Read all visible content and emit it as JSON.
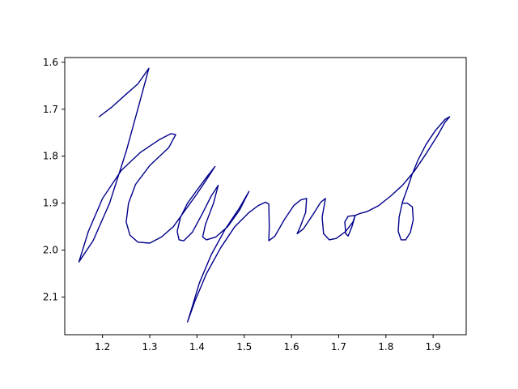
{
  "chart_data": {
    "type": "line",
    "title": "",
    "xlabel": "",
    "ylabel": "",
    "xlim": [
      1.12,
      1.97
    ],
    "ylim": [
      2.18,
      1.59
    ],
    "y_inverted": true,
    "grid": false,
    "legend": "none",
    "x_ticks": [
      1.2,
      1.3,
      1.4,
      1.5,
      1.6,
      1.7,
      1.8,
      1.9
    ],
    "x_tick_labels": [
      "1.2",
      "1.3",
      "1.4",
      "1.5",
      "1.6",
      "1.7",
      "1.8",
      "1.9"
    ],
    "y_ticks": [
      1.6,
      1.7,
      1.8,
      1.9,
      2.0,
      2.1
    ],
    "y_tick_labels": [
      "1.6",
      "1.7",
      "1.8",
      "1.9",
      "2.0",
      "2.1"
    ],
    "series": [
      {
        "color": "#00008b",
        "points": [
          [
            1.193,
            1.716
          ],
          [
            1.22,
            1.695
          ],
          [
            1.25,
            1.668
          ],
          [
            1.275,
            1.646
          ],
          [
            1.298,
            1.613
          ],
          [
            1.28,
            1.68
          ],
          [
            1.25,
            1.79
          ],
          [
            1.215,
            1.9
          ],
          [
            1.18,
            1.98
          ],
          [
            1.15,
            2.025
          ],
          [
            1.17,
            1.96
          ],
          [
            1.2,
            1.89
          ],
          [
            1.24,
            1.83
          ],
          [
            1.28,
            1.792
          ],
          [
            1.32,
            1.765
          ],
          [
            1.345,
            1.752
          ],
          [
            1.355,
            1.754
          ],
          [
            1.34,
            1.782
          ],
          [
            1.3,
            1.82
          ],
          [
            1.27,
            1.86
          ],
          [
            1.255,
            1.9
          ],
          [
            1.25,
            1.94
          ],
          [
            1.258,
            1.968
          ],
          [
            1.275,
            1.983
          ],
          [
            1.3,
            1.985
          ],
          [
            1.325,
            1.972
          ],
          [
            1.35,
            1.95
          ],
          [
            1.375,
            1.915
          ],
          [
            1.4,
            1.88
          ],
          [
            1.42,
            1.85
          ],
          [
            1.438,
            1.822
          ],
          [
            1.42,
            1.845
          ],
          [
            1.4,
            1.872
          ],
          [
            1.38,
            1.9
          ],
          [
            1.365,
            1.93
          ],
          [
            1.358,
            1.96
          ],
          [
            1.362,
            1.978
          ],
          [
            1.372,
            1.98
          ],
          [
            1.39,
            1.962
          ],
          [
            1.41,
            1.925
          ],
          [
            1.43,
            1.885
          ],
          [
            1.445,
            1.862
          ],
          [
            1.435,
            1.9
          ],
          [
            1.418,
            1.945
          ],
          [
            1.412,
            1.972
          ],
          [
            1.42,
            1.978
          ],
          [
            1.44,
            1.972
          ],
          [
            1.465,
            1.95
          ],
          [
            1.49,
            1.915
          ],
          [
            1.51,
            1.875
          ],
          [
            1.49,
            1.91
          ],
          [
            1.46,
            1.955
          ],
          [
            1.43,
            2.01
          ],
          [
            1.405,
            2.07
          ],
          [
            1.39,
            2.12
          ],
          [
            1.38,
            2.153
          ],
          [
            1.395,
            2.11
          ],
          [
            1.42,
            2.05
          ],
          [
            1.45,
            1.995
          ],
          [
            1.48,
            1.95
          ],
          [
            1.51,
            1.92
          ],
          [
            1.53,
            1.905
          ],
          [
            1.545,
            1.898
          ],
          [
            1.552,
            1.902
          ],
          [
            1.553,
            1.95
          ],
          [
            1.552,
            1.98
          ],
          [
            1.565,
            1.97
          ],
          [
            1.585,
            1.935
          ],
          [
            1.605,
            1.905
          ],
          [
            1.62,
            1.893
          ],
          [
            1.632,
            1.89
          ],
          [
            1.63,
            1.92
          ],
          [
            1.618,
            1.952
          ],
          [
            1.612,
            1.965
          ],
          [
            1.625,
            1.955
          ],
          [
            1.645,
            1.925
          ],
          [
            1.662,
            1.898
          ],
          [
            1.672,
            1.89
          ],
          [
            1.665,
            1.93
          ],
          [
            1.668,
            1.965
          ],
          [
            1.68,
            1.978
          ],
          [
            1.695,
            1.975
          ],
          [
            1.715,
            1.96
          ],
          [
            1.73,
            1.94
          ],
          [
            1.735,
            1.926
          ],
          [
            1.72,
            1.928
          ],
          [
            1.713,
            1.94
          ],
          [
            1.715,
            1.965
          ],
          [
            1.72,
            1.97
          ],
          [
            1.728,
            1.95
          ],
          [
            1.735,
            1.926
          ],
          [
            1.745,
            1.922
          ],
          [
            1.76,
            1.918
          ],
          [
            1.785,
            1.905
          ],
          [
            1.81,
            1.885
          ],
          [
            1.835,
            1.862
          ],
          [
            1.86,
            1.832
          ],
          [
            1.885,
            1.795
          ],
          [
            1.91,
            1.755
          ],
          [
            1.925,
            1.728
          ],
          [
            1.935,
            1.716
          ],
          [
            1.925,
            1.722
          ],
          [
            1.905,
            1.745
          ],
          [
            1.885,
            1.775
          ],
          [
            1.868,
            1.808
          ],
          [
            1.855,
            1.84
          ],
          [
            1.845,
            1.87
          ],
          [
            1.835,
            1.898
          ],
          [
            1.828,
            1.93
          ],
          [
            1.826,
            1.96
          ],
          [
            1.832,
            1.978
          ],
          [
            1.842,
            1.978
          ],
          [
            1.852,
            1.962
          ],
          [
            1.858,
            1.935
          ],
          [
            1.856,
            1.908
          ],
          [
            1.845,
            1.9
          ],
          [
            1.835,
            1.9
          ]
        ]
      }
    ]
  }
}
